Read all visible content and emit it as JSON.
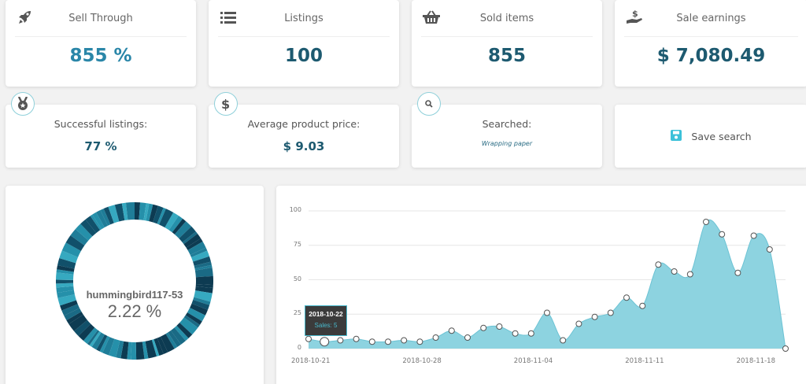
{
  "stats": [
    {
      "label": "Sell Through",
      "value": "855 %",
      "icon": "rocket-icon"
    },
    {
      "label": "Listings",
      "value": "100",
      "icon": "list-icon"
    },
    {
      "label": "Sold items",
      "value": "855",
      "icon": "basket-icon"
    },
    {
      "label": "Sale earnings",
      "value": "$ 7,080.49",
      "icon": "hand-dollar-icon"
    }
  ],
  "info": {
    "successful": {
      "label": "Successful listings:",
      "value": "77 %",
      "icon": "medal-icon"
    },
    "avg_price": {
      "label": "Average product price:",
      "value": "$ 9.03",
      "icon": "dollar-icon"
    },
    "searched": {
      "label": "Searched:",
      "value": "Wrapping paper",
      "icon": "search-icon"
    },
    "save": {
      "label": "Save search",
      "icon": "floppy-icon"
    }
  },
  "donut": {
    "center_label": "hummingbird117-53",
    "center_value": "2.22 %",
    "colors": [
      "#0d3b52",
      "#1a6a85",
      "#2590aa",
      "#36a9c0",
      "#1f7d98",
      "#11506a"
    ]
  },
  "tooltip": {
    "date": "2018-10-22",
    "value": "Sales: 5"
  },
  "colors": {
    "accent": "#2a86a8",
    "value_dark": "#1d5a70",
    "area_fill": "#8dd3e0",
    "area_stroke": "#6cc3d4",
    "badge_border": "#8fd0da",
    "save_icon": "#3cc1d9"
  },
  "chart_data": {
    "type": "area",
    "title": "",
    "xlabel": "",
    "ylabel": "",
    "ylim": [
      0,
      100
    ],
    "yticks": [
      0,
      25,
      50,
      75,
      100
    ],
    "xticks": [
      "2018-10-21",
      "2018-10-28",
      "2018-11-04",
      "2018-11-11",
      "2018-11-18"
    ],
    "grid": true,
    "legend": "none",
    "x": [
      "2018-10-21",
      "2018-10-22",
      "2018-10-23",
      "2018-10-24",
      "2018-10-25",
      "2018-10-26",
      "2018-10-27",
      "2018-10-28",
      "2018-10-29",
      "2018-10-30",
      "2018-10-31",
      "2018-11-01",
      "2018-11-02",
      "2018-11-03",
      "2018-11-04",
      "2018-11-05",
      "2018-11-06",
      "2018-11-07",
      "2018-11-08",
      "2018-11-09",
      "2018-11-10",
      "2018-11-11",
      "2018-11-12",
      "2018-11-13",
      "2018-11-14",
      "2018-11-15",
      "2018-11-16",
      "2018-11-17",
      "2018-11-18",
      "2018-11-19",
      "2018-11-20"
    ],
    "series": [
      {
        "name": "Sales",
        "values": [
          7,
          5,
          6,
          7,
          5,
          5,
          6,
          5,
          8,
          13,
          8,
          15,
          16,
          11,
          11,
          26,
          6,
          18,
          23,
          26,
          37,
          31,
          61,
          56,
          54,
          92,
          83,
          55,
          82,
          72,
          0
        ]
      }
    ]
  }
}
